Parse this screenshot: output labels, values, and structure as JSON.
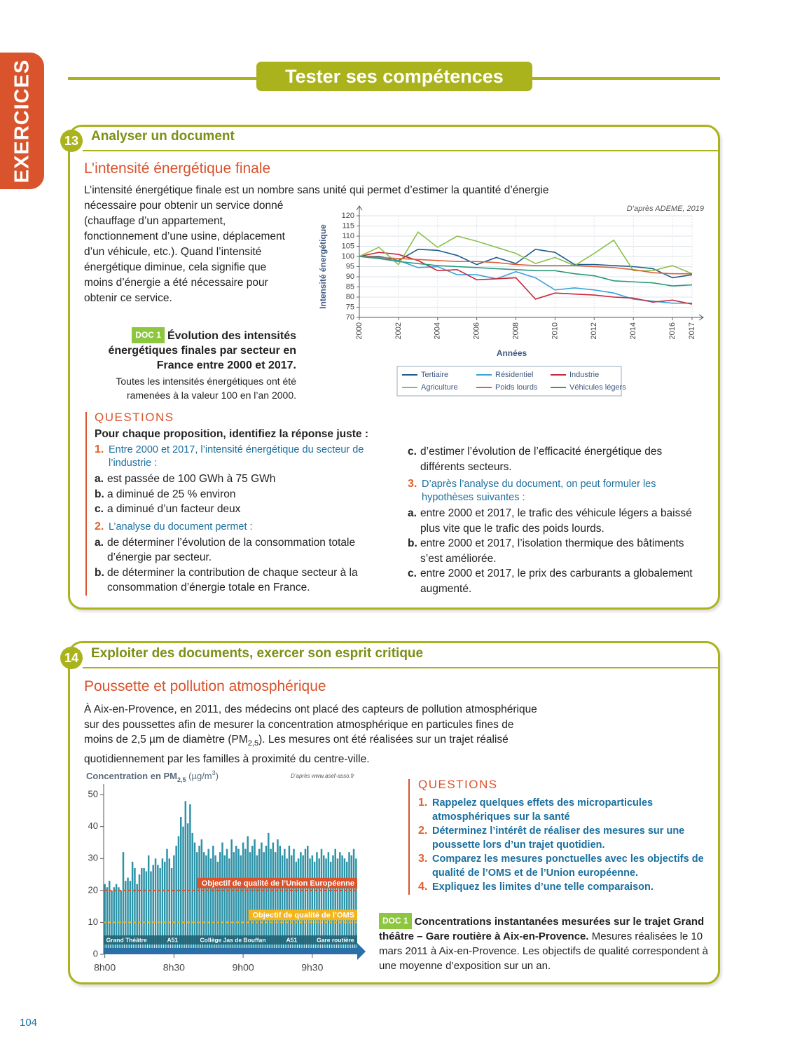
{
  "header": {
    "side_tab": "EXERCICES",
    "title": "Tester ses compétences"
  },
  "exercise_13": {
    "number": "13",
    "heading": "Analyser un document",
    "title": "L’intensité énergétique finale",
    "intro": [
      "L’intensité énergétique finale est un nombre sans unité qui permet d’estimer la quantité d’énergie",
      "nécessaire pour obtenir un service donné (chauffage d’un appartement, fonctionnement d’une usine, déplacement d’un véhicule, etc.). Quand l’intensité énergétique diminue, cela signifie que moins d’énergie a été nécessaire pour obtenir ce service."
    ],
    "doc_label": "DOC 1",
    "doc_title": "Évolution des intensités énergétiques finales par secteur en France entre 2000 et 2017.",
    "doc_caption": "Toutes les intensités énergétiques ont été ramenées à la valeur 100 en l’an 2000.",
    "questions_label": "QUESTIONS",
    "instruction": "Pour chaque proposition, identifiez la réponse juste :",
    "questions": [
      {
        "number": "1.",
        "text": "Entre 2000 et 2017, l’intensité énergétique du secteur de l’industrie :",
        "options": [
          {
            "letter": "a.",
            "text": "est passée de 100 GWh à 75 GWh"
          },
          {
            "letter": "b.",
            "text": "a diminué de 25 % environ"
          },
          {
            "letter": "c.",
            "text": "a diminué d’un facteur deux"
          }
        ]
      },
      {
        "number": "2.",
        "text": "L’analyse du document permet :",
        "options": [
          {
            "letter": "a.",
            "text": "de déterminer l’évolution de la consommation totale d’énergie par secteur."
          },
          {
            "letter": "b.",
            "text": "de déterminer la contribution de chaque secteur à la consommation d’énergie totale en France."
          },
          {
            "letter": "c.",
            "text": "d’estimer l’évolution de l’efficacité énergétique des différents secteurs."
          }
        ]
      },
      {
        "number": "3.",
        "text": "D’après l’analyse du document, on peut formuler les hypothèses suivantes :",
        "options": [
          {
            "letter": "a.",
            "text": "entre 2000 et 2017, le trafic des véhicule légers a baissé plus vite que le trafic des poids lourds."
          },
          {
            "letter": "b.",
            "text": "entre 2000 et 2017, l’isolation thermique des bâtiments s’est améliorée."
          },
          {
            "letter": "c.",
            "text": "entre 2000 et 2017, le prix des carburants a globalement augmenté."
          }
        ]
      }
    ]
  },
  "exercise_14": {
    "number": "14",
    "heading": "Exploiter des documents, exercer son esprit critique",
    "title": "Poussette et pollution atmosphérique",
    "intro": [
      "À Aix-en-Provence, en 2011, des médecins ont placé des capteurs de pollution atmosphérique sur des poussettes afin de mesurer la concentration atmosphérique en particules fines de moins de 2,5 µm de diamètre (PM",
      "2,5",
      "). Les mesures ont été réalisées sur un trajet réalisé quotidiennement par les familles à proximité du centre-ville."
    ],
    "questions_label": "QUESTIONS",
    "questions": [
      {
        "number": "1.",
        "text": "Rappelez quelques effets des microparticules atmosphériques sur la santé"
      },
      {
        "number": "2.",
        "text": "Déterminez l’intérêt de réaliser des mesures sur une poussette lors d’un trajet quotidien."
      },
      {
        "number": "3.",
        "text": "Comparez les mesures ponctuelles avec les objectifs de qualité de l’OMS et de l’Union européenne."
      },
      {
        "number": "4.",
        "text": "Expliquez les limites d’une telle comparaison."
      }
    ],
    "doc_label": "DOC 1",
    "doc_title": "Concentrations instantanées mesurées sur le trajet Grand théâtre – Gare routière à Aix-en-Provence.",
    "doc_caption": "Mesures réalisées le 10 mars 2011 à Aix-en-Provence. Les objectifs de qualité correspondent à une moyenne d’exposition sur un an."
  },
  "page_number": "104",
  "chart_data": [
    {
      "type": "line",
      "source": "D’après ADEME, 2019",
      "y_label": "Intensité énergétique",
      "x_label": "Années",
      "x": [
        2000,
        2001,
        2002,
        2003,
        2004,
        2005,
        2006,
        2007,
        2008,
        2009,
        2010,
        2011,
        2012,
        2013,
        2014,
        2015,
        2016,
        2017
      ],
      "xlim": [
        2000,
        2017
      ],
      "xticks": [
        2000,
        2002,
        2004,
        2006,
        2008,
        2010,
        2012,
        2014,
        2016,
        2017
      ],
      "ylim": [
        70,
        120
      ],
      "yticks": [
        70,
        75,
        80,
        85,
        90,
        95,
        100,
        105,
        110,
        115,
        120
      ],
      "grid": true,
      "series": [
        {
          "name": "Tertiaire",
          "color": "#1f5d8c",
          "values": [
            100,
            100,
            98,
            103.5,
            103,
            100.5,
            96,
            99.5,
            96.5,
            103.5,
            102,
            96,
            96,
            95.5,
            95,
            94,
            89.5,
            91
          ]
        },
        {
          "name": "Résidentiel",
          "color": "#3aa3dc",
          "values": [
            100,
            99,
            98,
            94.5,
            95,
            91,
            91,
            89,
            92.5,
            89.5,
            83.5,
            84.5,
            83.5,
            82,
            79,
            78,
            77,
            77
          ]
        },
        {
          "name": "Industrie",
          "color": "#c8283c",
          "values": [
            100,
            102,
            101,
            98,
            93,
            93.5,
            88.5,
            89,
            89.5,
            79,
            82,
            81.5,
            81,
            80,
            79.5,
            77.5,
            78.5,
            76.5
          ]
        },
        {
          "name": "Agriculture",
          "color": "#8cc04b",
          "values": [
            100,
            104.5,
            96,
            112,
            104.5,
            110,
            107.5,
            104.5,
            101.5,
            96.5,
            99.5,
            95.5,
            101.5,
            108,
            93,
            93,
            95.5,
            91.5
          ]
        },
        {
          "name": "Poids lourds",
          "color": "#e0603a",
          "values": [
            100,
            99.5,
            99,
            98.5,
            98,
            97.5,
            97.5,
            97,
            96,
            95.5,
            95.5,
            95.5,
            95,
            94.5,
            93.5,
            92,
            91.5,
            91.5
          ]
        },
        {
          "name": "Véhicules légers",
          "color": "#2a9a7a",
          "values": [
            100,
            99,
            97.5,
            96.5,
            95.5,
            95,
            94.5,
            94,
            93.5,
            93,
            93,
            91.5,
            90.5,
            88,
            87.5,
            87,
            85.5,
            86
          ]
        }
      ]
    },
    {
      "type": "bar",
      "title_parts": [
        "Concentration en PM",
        "2,5",
        " (µg/m",
        "3",
        ")"
      ],
      "source": "D’après www.asef-asso.fr",
      "color": "#2f93a8",
      "ylim": [
        0,
        52
      ],
      "yticks": [
        0,
        10,
        20,
        30,
        40,
        50
      ],
      "categories": [
        "8h00",
        null,
        null,
        null,
        null,
        null,
        null,
        null,
        null,
        null,
        null,
        null,
        null,
        null,
        null,
        null,
        null,
        null,
        null,
        null,
        null,
        null,
        null,
        null,
        null,
        null,
        null,
        null,
        null,
        null,
        "8h30",
        null,
        null,
        null,
        null,
        null,
        null,
        null,
        null,
        null,
        null,
        null,
        null,
        null,
        null,
        null,
        null,
        null,
        null,
        null,
        null,
        null,
        null,
        null,
        null,
        null,
        null,
        null,
        null,
        null,
        "9h00",
        null,
        null,
        null,
        null,
        null,
        null,
        null,
        null,
        null,
        null,
        null,
        null,
        null,
        null,
        null,
        null,
        null,
        null,
        null,
        null,
        null,
        null,
        null,
        null,
        null,
        null,
        null,
        null,
        null,
        "9h30",
        null,
        null,
        null,
        null,
        null,
        null,
        null,
        null,
        null,
        null,
        null,
        null,
        null,
        null,
        null,
        null,
        null,
        null,
        null
      ],
      "values": [
        22,
        21,
        23,
        20,
        21,
        22,
        21,
        20,
        32,
        23,
        24,
        23,
        29,
        27,
        22,
        25,
        27,
        27,
        26,
        31,
        26,
        28,
        30,
        28,
        27,
        30,
        29,
        33,
        30,
        27,
        31,
        34,
        37,
        43,
        40,
        48,
        41,
        47,
        38,
        35,
        32,
        34,
        36,
        32,
        31,
        33,
        30,
        34,
        31,
        29,
        32,
        35,
        31,
        33,
        30,
        36,
        32,
        34,
        33,
        31,
        35,
        33,
        37,
        32,
        34,
        36,
        31,
        33,
        35,
        32,
        34,
        38,
        33,
        35,
        32,
        36,
        34,
        31,
        33,
        30,
        34,
        31,
        33,
        29,
        30,
        32,
        31,
        33,
        34,
        30,
        31,
        29,
        32,
        30,
        33,
        31,
        30,
        32,
        29,
        31,
        33,
        30,
        32,
        31,
        30,
        29,
        32,
        31,
        33,
        30
      ],
      "reference_lines": [
        {
          "label": "Objectif de qualité de l’Union Européenne",
          "value": 20,
          "color": "#d9532c"
        },
        {
          "label": "Objectif de qualité de l’OMS",
          "value": 10,
          "color": "#f2b51e"
        }
      ],
      "locations": [
        "Grand Théâtre",
        "A51",
        "Collège Jas de Bouffan",
        "A51",
        "Gare routière"
      ]
    }
  ]
}
